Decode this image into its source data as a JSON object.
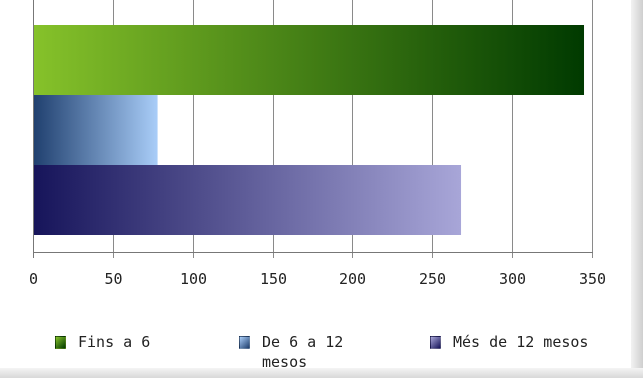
{
  "chart_data": {
    "type": "bar",
    "orientation": "horizontal",
    "series": [
      {
        "name": "Fins a 6",
        "value": 345,
        "color_start": "#86c22a",
        "color_end": "#003a00"
      },
      {
        "name": "De 6 a 12 mesos",
        "value": 78,
        "color_start": "#1f3f6e",
        "color_end": "#a9cdf8"
      },
      {
        "name": "Més de 12 mesos",
        "value": 268,
        "color_start": "#16145a",
        "color_end": "#a8a6d8"
      }
    ],
    "x_ticks": [
      "0",
      "50",
      "100",
      "150",
      "200",
      "250",
      "300",
      "350"
    ],
    "xlim": [
      0,
      350
    ],
    "grid": true,
    "legend_position": "bottom"
  }
}
